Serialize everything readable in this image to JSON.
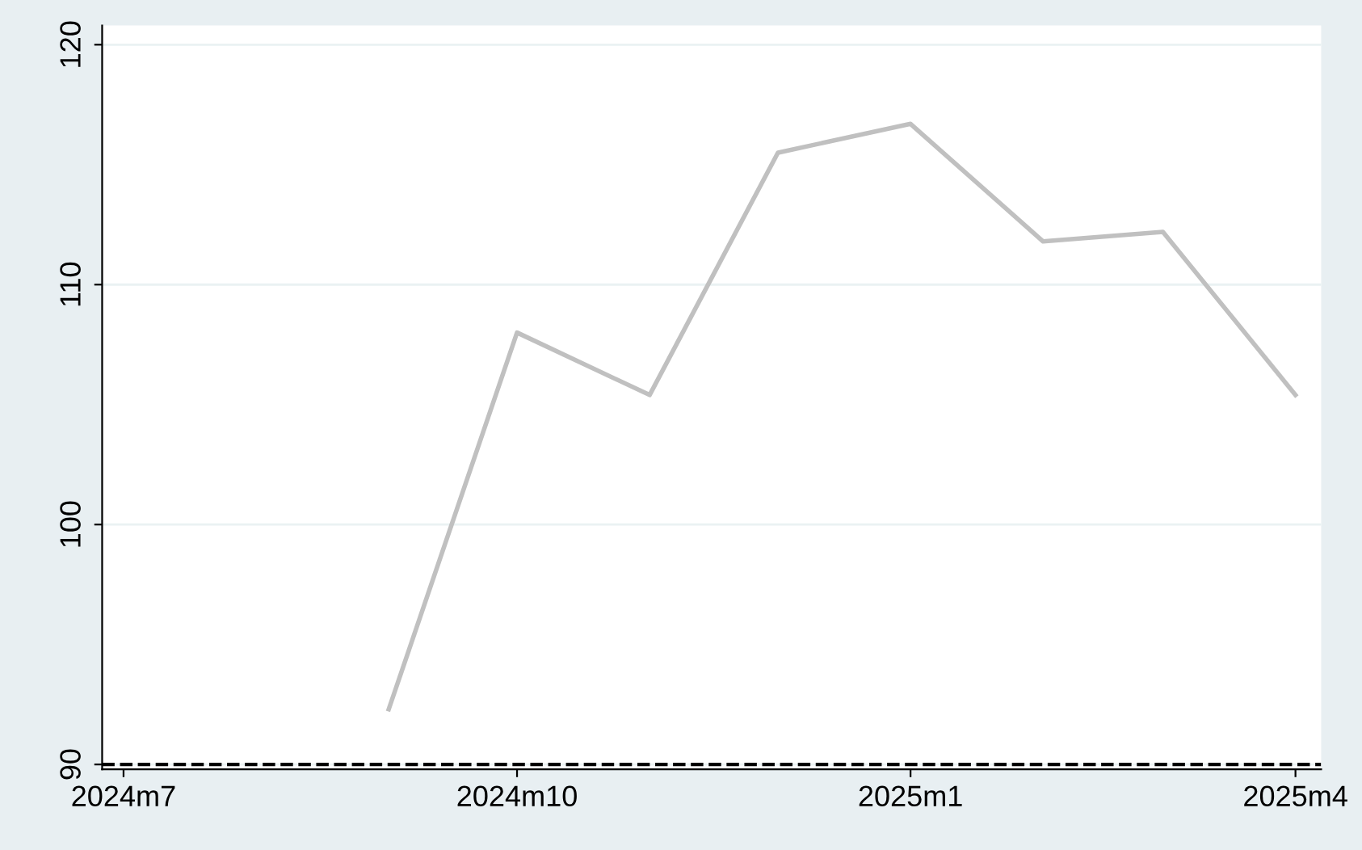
{
  "chart_data": {
    "type": "line",
    "x": [
      "2024-09",
      "2024-10",
      "2024-11",
      "2024-12",
      "2025-01",
      "2025-02",
      "2025-03",
      "2025-04"
    ],
    "series": [
      {
        "color": "#c0c0c0",
        "values": [
          92.3,
          108.0,
          105.4,
          115.5,
          116.7,
          111.8,
          112.2,
          105.4
        ]
      }
    ],
    "xlim": [
      "2024-06-26",
      "2025-04-07"
    ],
    "xticks": [
      {
        "value": "2024-07",
        "label": "2024m7"
      },
      {
        "value": "2024-10",
        "label": "2024m10"
      },
      {
        "value": "2025-01",
        "label": "2025m1"
      },
      {
        "value": "2025-04",
        "label": "2025m4"
      }
    ],
    "ylim": [
      89.8,
      120.8
    ],
    "yticks": [
      90,
      100,
      110,
      120
    ],
    "grid": "y",
    "line_style": "solid",
    "marker": "none",
    "ref_lines": [
      {
        "axis": "y",
        "value": 90,
        "color": "#000000",
        "line_style": "dashed"
      }
    ]
  }
}
